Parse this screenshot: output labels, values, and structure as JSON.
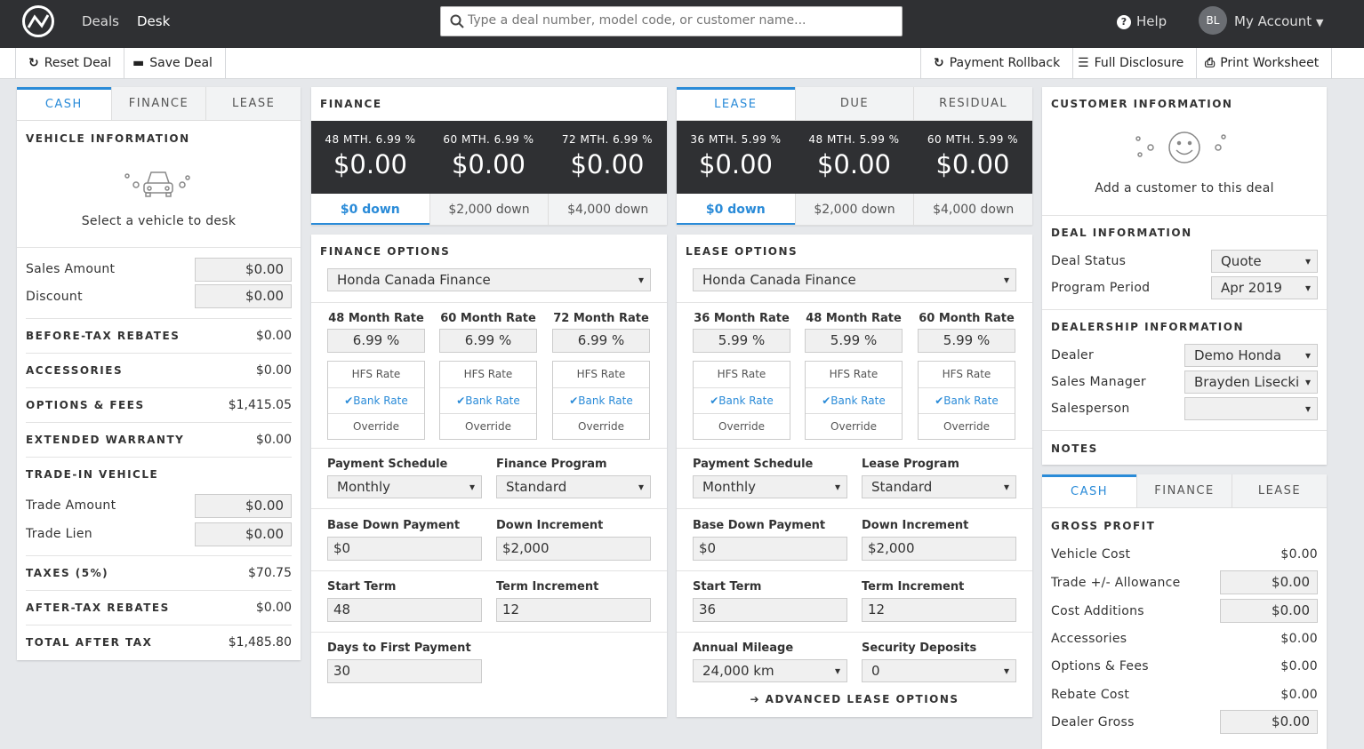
{
  "nav": {
    "deals": "Deals",
    "desk": "Desk",
    "search_placeholder": "Type a deal number, model code, or customer name...",
    "help": "Help",
    "avatar": "BL",
    "account": "My Account"
  },
  "toolbar": {
    "reset": "Reset Deal",
    "save": "Save Deal",
    "rollback": "Payment Rollback",
    "disclosure": "Full Disclosure",
    "print": "Print Worksheet"
  },
  "left": {
    "tabs": [
      "CASH",
      "FINANCE",
      "LEASE"
    ],
    "vehicle_title": "VEHICLE INFORMATION",
    "vehicle_prompt": "Select a vehicle to desk",
    "sales_amount_label": "Sales Amount",
    "sales_amount": "$0.00",
    "discount_label": "Discount",
    "discount": "$0.00",
    "rows": [
      {
        "label": "BEFORE-TAX REBATES",
        "value": "$0.00"
      },
      {
        "label": "ACCESSORIES",
        "value": "$0.00"
      },
      {
        "label": "OPTIONS & FEES",
        "value": "$1,415.05"
      },
      {
        "label": "EXTENDED WARRANTY",
        "value": "$0.00"
      }
    ],
    "trade_title": "TRADE-IN VEHICLE",
    "trade_amount_label": "Trade Amount",
    "trade_amount": "$0.00",
    "trade_lien_label": "Trade Lien",
    "trade_lien": "$0.00",
    "taxes_label": "TAXES (5%)",
    "taxes": "$70.75",
    "after_tax_label": "AFTER-TAX REBATES",
    "after_tax": "$0.00",
    "total_label": "TOTAL AFTER TAX",
    "total": "$1,485.80"
  },
  "finance": {
    "title": "FINANCE",
    "rates": [
      {
        "term": "48 MTH. 6.99 %",
        "payment": "$0.00"
      },
      {
        "term": "60 MTH. 6.99 %",
        "payment": "$0.00"
      },
      {
        "term": "72 MTH. 6.99 %",
        "payment": "$0.00"
      }
    ],
    "downs": [
      "$0 down",
      "$2,000 down",
      "$4,000 down"
    ],
    "options_title": "FINANCE OPTIONS",
    "lender": "Honda Canada Finance",
    "cols": [
      {
        "head": "48 Month Rate",
        "rate": "6.99 %"
      },
      {
        "head": "60 Month Rate",
        "rate": "6.99 %"
      },
      {
        "head": "72 Month Rate",
        "rate": "6.99 %"
      }
    ],
    "hfs": "HFS Rate",
    "bank": "Bank Rate",
    "override": "Override",
    "schedule_label": "Payment Schedule",
    "schedule": "Monthly",
    "program_label": "Finance Program",
    "program": "Standard",
    "base_down_label": "Base Down Payment",
    "base_down": "$0",
    "increment_label": "Down Increment",
    "increment": "$2,000",
    "start_term_label": "Start Term",
    "start_term": "48",
    "term_inc_label": "Term Increment",
    "term_inc": "12",
    "days_label": "Days to First Payment",
    "days": "30"
  },
  "lease": {
    "tabs": [
      "LEASE",
      "DUE",
      "RESIDUAL"
    ],
    "rates": [
      {
        "term": "36 MTH. 5.99 %",
        "payment": "$0.00"
      },
      {
        "term": "48 MTH. 5.99 %",
        "payment": "$0.00"
      },
      {
        "term": "60 MTH. 5.99 %",
        "payment": "$0.00"
      }
    ],
    "downs": [
      "$0 down",
      "$2,000 down",
      "$4,000 down"
    ],
    "options_title": "LEASE OPTIONS",
    "lender": "Honda Canada Finance",
    "cols": [
      {
        "head": "36 Month Rate",
        "rate": "5.99 %"
      },
      {
        "head": "48 Month Rate",
        "rate": "5.99 %"
      },
      {
        "head": "60 Month Rate",
        "rate": "5.99 %"
      }
    ],
    "hfs": "HFS Rate",
    "bank": "Bank Rate",
    "override": "Override",
    "schedule_label": "Payment Schedule",
    "schedule": "Monthly",
    "program_label": "Lease Program",
    "program": "Standard",
    "base_down_label": "Base Down Payment",
    "base_down": "$0",
    "increment_label": "Down Increment",
    "increment": "$2,000",
    "start_term_label": "Start Term",
    "start_term": "36",
    "term_inc_label": "Term Increment",
    "term_inc": "12",
    "mileage_label": "Annual Mileage",
    "mileage": "24,000 km",
    "deposits_label": "Security Deposits",
    "deposits": "0",
    "advanced": "ADVANCED LEASE OPTIONS"
  },
  "customer": {
    "title": "CUSTOMER INFORMATION",
    "prompt": "Add a customer to this deal",
    "deal_title": "DEAL INFORMATION",
    "status_label": "Deal Status",
    "status": "Quote",
    "period_label": "Program Period",
    "period": "Apr 2019",
    "dealership_title": "DEALERSHIP INFORMATION",
    "dealer_label": "Dealer",
    "dealer": "Demo Honda",
    "manager_label": "Sales Manager",
    "manager": "Brayden Lisecki",
    "salesperson_label": "Salesperson",
    "salesperson": "",
    "notes": "NOTES"
  },
  "gross": {
    "tabs": [
      "CASH",
      "FINANCE",
      "LEASE"
    ],
    "title": "GROSS PROFIT",
    "vehicle_cost_label": "Vehicle Cost",
    "vehicle_cost": "$0.00",
    "trade_allow_label": "Trade +/- Allowance",
    "trade_allow": "$0.00",
    "cost_add_label": "Cost Additions",
    "cost_add": "$0.00",
    "accessories_label": "Accessories",
    "accessories": "$0.00",
    "options_label": "Options & Fees",
    "options": "$0.00",
    "rebate_label": "Rebate Cost",
    "rebate": "$0.00",
    "dealer_gross_label": "Dealer Gross",
    "dealer_gross": "$0.00"
  },
  "colors": {
    "accent": "#2a8bd8",
    "topbar": "#2f3033"
  }
}
